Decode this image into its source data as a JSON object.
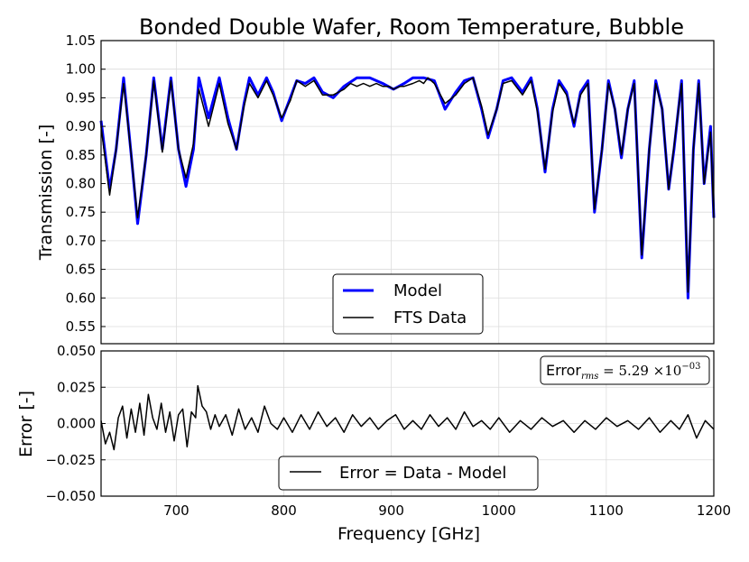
{
  "chart_data": [
    {
      "type": "line",
      "title": "Bonded Double Wafer, Room Temperature, Bubble",
      "xlabel": "",
      "ylabel": "Transmission [-]",
      "xlim": [
        630,
        1200
      ],
      "ylim": [
        0.52,
        1.05
      ],
      "grid": true,
      "yticks": [
        0.55,
        0.6,
        0.65,
        0.7,
        0.75,
        0.8,
        0.85,
        0.9,
        0.95,
        1.0,
        1.05
      ],
      "ytick_labels": [
        "0.55",
        "0.60",
        "0.65",
        "0.70",
        "0.75",
        "0.80",
        "0.85",
        "0.90",
        "0.95",
        "1.00",
        "1.05"
      ],
      "xticks": [
        700,
        800,
        900,
        1000,
        1100,
        1200
      ],
      "legend": {
        "location": "lower-center",
        "entries": [
          "Model",
          "FTS Data"
        ]
      },
      "series": [
        {
          "name": "Model",
          "color": "#0000ff",
          "x": [
            630,
            638,
            644,
            651,
            658,
            664,
            672,
            679,
            687,
            695,
            702,
            709,
            716,
            721,
            730,
            740,
            748,
            756,
            763,
            768,
            776,
            784,
            790,
            798,
            806,
            812,
            820,
            828,
            836,
            846,
            856,
            868,
            880,
            892,
            902,
            912,
            920,
            930,
            940,
            950,
            960,
            968,
            976,
            984,
            990,
            998,
            1004,
            1012,
            1022,
            1030,
            1036,
            1043,
            1050,
            1056,
            1063,
            1070,
            1076,
            1083,
            1089,
            1096,
            1102,
            1108,
            1114,
            1120,
            1126,
            1133,
            1140,
            1146,
            1152,
            1158,
            1163,
            1170,
            1176,
            1181,
            1186,
            1191,
            1197,
            1200
          ],
          "y": [
            0.91,
            0.79,
            0.86,
            0.985,
            0.85,
            0.73,
            0.85,
            0.985,
            0.86,
            0.985,
            0.86,
            0.795,
            0.86,
            0.985,
            0.915,
            0.985,
            0.915,
            0.86,
            0.94,
            0.985,
            0.955,
            0.985,
            0.96,
            0.91,
            0.95,
            0.98,
            0.975,
            0.985,
            0.96,
            0.95,
            0.97,
            0.985,
            0.985,
            0.975,
            0.965,
            0.975,
            0.985,
            0.985,
            0.98,
            0.93,
            0.96,
            0.98,
            0.985,
            0.93,
            0.88,
            0.93,
            0.98,
            0.985,
            0.96,
            0.985,
            0.93,
            0.82,
            0.93,
            0.98,
            0.96,
            0.9,
            0.96,
            0.98,
            0.75,
            0.86,
            0.98,
            0.93,
            0.845,
            0.93,
            0.98,
            0.67,
            0.86,
            0.98,
            0.93,
            0.79,
            0.86,
            0.98,
            0.6,
            0.86,
            0.98,
            0.8,
            0.9,
            0.74
          ]
        },
        {
          "name": "FTS Data",
          "color": "#000000",
          "x": [
            630,
            638,
            644,
            651,
            658,
            664,
            672,
            679,
            687,
            695,
            702,
            709,
            716,
            721,
            730,
            740,
            748,
            756,
            763,
            768,
            776,
            784,
            790,
            798,
            806,
            812,
            820,
            828,
            836,
            846,
            856,
            862,
            868,
            874,
            880,
            886,
            892,
            898,
            902,
            908,
            912,
            920,
            926,
            930,
            934,
            940,
            950,
            960,
            968,
            976,
            984,
            990,
            998,
            1004,
            1012,
            1022,
            1030,
            1036,
            1043,
            1050,
            1056,
            1063,
            1070,
            1076,
            1083,
            1089,
            1096,
            1102,
            1108,
            1114,
            1120,
            1126,
            1133,
            1140,
            1146,
            1152,
            1158,
            1163,
            1170,
            1176,
            1181,
            1186,
            1191,
            1197,
            1200
          ],
          "y": [
            0.9,
            0.78,
            0.86,
            0.975,
            0.85,
            0.74,
            0.85,
            0.98,
            0.855,
            0.98,
            0.86,
            0.81,
            0.87,
            0.965,
            0.9,
            0.975,
            0.905,
            0.86,
            0.935,
            0.975,
            0.95,
            0.98,
            0.955,
            0.915,
            0.945,
            0.98,
            0.97,
            0.98,
            0.955,
            0.955,
            0.965,
            0.975,
            0.97,
            0.975,
            0.97,
            0.975,
            0.97,
            0.97,
            0.965,
            0.97,
            0.97,
            0.975,
            0.98,
            0.975,
            0.985,
            0.975,
            0.94,
            0.955,
            0.975,
            0.985,
            0.935,
            0.885,
            0.93,
            0.975,
            0.98,
            0.955,
            0.98,
            0.925,
            0.825,
            0.925,
            0.975,
            0.955,
            0.905,
            0.955,
            0.975,
            0.755,
            0.86,
            0.975,
            0.93,
            0.85,
            0.93,
            0.975,
            0.675,
            0.86,
            0.975,
            0.93,
            0.79,
            0.865,
            0.975,
            0.61,
            0.86,
            0.975,
            0.8,
            0.89,
            0.74
          ]
        }
      ]
    },
    {
      "type": "line",
      "title": "",
      "xlabel": "Frequency [GHz]",
      "ylabel": "Error [-]",
      "xlim": [
        630,
        1200
      ],
      "ylim": [
        -0.05,
        0.05
      ],
      "grid": true,
      "yticks": [
        -0.05,
        -0.025,
        0.0,
        0.025,
        0.05
      ],
      "ytick_labels": [
        "−0.050",
        "−0.025",
        "0.000",
        "0.025",
        "0.050"
      ],
      "xticks": [
        700,
        800,
        900,
        1000,
        1100,
        1200
      ],
      "xtick_labels": [
        "700",
        "800",
        "900",
        "1000",
        "1100",
        "1200"
      ],
      "annotation": {
        "label": "Error",
        "subscript": "rms",
        "equals": " = 5.29 ×10",
        "exponent": "−03"
      },
      "legend": {
        "location": "lower-center",
        "entries": [
          "Error = Data - Model"
        ]
      },
      "series": [
        {
          "name": "Error = Data - Model",
          "color": "#000000",
          "x": [
            630,
            634,
            638,
            642,
            646,
            650,
            654,
            658,
            662,
            666,
            670,
            674,
            678,
            682,
            686,
            690,
            694,
            698,
            702,
            706,
            710,
            714,
            718,
            720,
            724,
            728,
            732,
            736,
            740,
            746,
            752,
            758,
            764,
            770,
            776,
            782,
            788,
            794,
            800,
            808,
            816,
            824,
            832,
            840,
            848,
            856,
            864,
            872,
            880,
            888,
            896,
            904,
            912,
            920,
            928,
            936,
            944,
            952,
            960,
            968,
            976,
            984,
            992,
            1000,
            1010,
            1020,
            1030,
            1040,
            1050,
            1060,
            1070,
            1080,
            1090,
            1100,
            1110,
            1120,
            1130,
            1140,
            1150,
            1160,
            1168,
            1176,
            1184,
            1192,
            1200
          ],
          "y": [
            0.002,
            -0.014,
            -0.006,
            -0.018,
            0.004,
            0.012,
            -0.01,
            0.01,
            -0.006,
            0.014,
            -0.008,
            0.02,
            0.004,
            -0.004,
            0.014,
            -0.006,
            0.008,
            -0.012,
            0.006,
            0.01,
            -0.016,
            0.008,
            0.004,
            0.026,
            0.012,
            0.008,
            -0.004,
            0.006,
            -0.002,
            0.006,
            -0.008,
            0.01,
            -0.004,
            0.004,
            -0.006,
            0.012,
            0.0,
            -0.004,
            0.004,
            -0.006,
            0.006,
            -0.004,
            0.008,
            -0.002,
            0.004,
            -0.006,
            0.006,
            -0.002,
            0.004,
            -0.004,
            0.002,
            0.006,
            -0.004,
            0.002,
            -0.004,
            0.006,
            -0.002,
            0.004,
            -0.004,
            0.008,
            -0.002,
            0.002,
            -0.004,
            0.004,
            -0.006,
            0.002,
            -0.004,
            0.004,
            -0.002,
            0.002,
            -0.006,
            0.002,
            -0.004,
            0.004,
            -0.002,
            0.002,
            -0.004,
            0.004,
            -0.006,
            0.002,
            -0.004,
            0.006,
            -0.01,
            0.002,
            -0.004
          ]
        }
      ]
    }
  ]
}
